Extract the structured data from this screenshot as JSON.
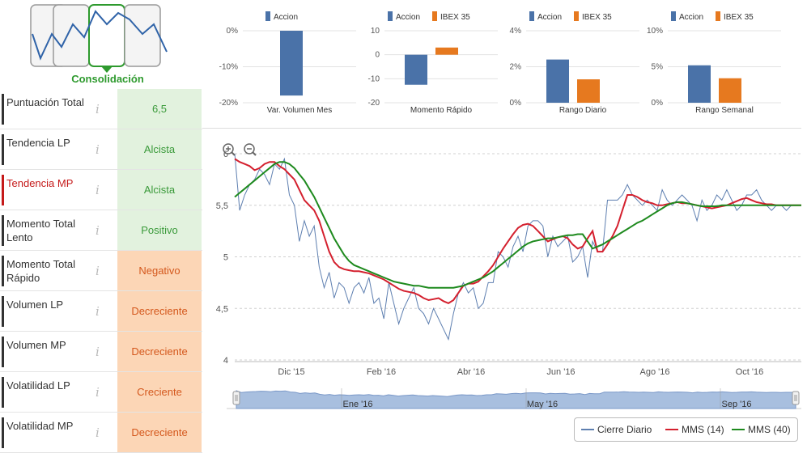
{
  "phase": {
    "label": "Consolidación",
    "phases": [
      "phase-1",
      "phase-2",
      "consolidacion",
      "phase-4"
    ],
    "active_index": 2,
    "colors": {
      "active": "#2e9a2e",
      "inactive": "#999999",
      "line": "#2f63a8"
    }
  },
  "indicators": [
    {
      "name": "Puntuación Total",
      "value": "6,5",
      "tone": "pos",
      "active": false
    },
    {
      "name": "Tendencia LP",
      "value": "Alcista",
      "tone": "pos",
      "active": false
    },
    {
      "name": "Tendencia MP",
      "value": "Alcista",
      "tone": "pos",
      "active": true
    },
    {
      "name": "Momento Total Lento",
      "value": "Positivo",
      "tone": "pos",
      "active": false
    },
    {
      "name": "Momento Total Rápido",
      "value": "Negativo",
      "tone": "neg",
      "active": false
    },
    {
      "name": "Volumen LP",
      "value": "Decreciente",
      "tone": "neg",
      "active": false
    },
    {
      "name": "Volumen MP",
      "value": "Decreciente",
      "tone": "neg",
      "active": false
    },
    {
      "name": "Volatilidad LP",
      "value": "Creciente",
      "tone": "neg",
      "active": false
    },
    {
      "name": "Volatilidad MP",
      "value": "Decreciente",
      "tone": "neg",
      "active": false
    }
  ],
  "info_glyph": "i",
  "colors": {
    "accion": "#4a72a8",
    "ibex": "#e6791f",
    "mms14": "#d4202e",
    "mms40": "#1e8a1e",
    "cierre": "#5e7fb0"
  },
  "chart_data": [
    {
      "type": "bar",
      "xlabel": "Var. Volumen Mes",
      "legend": [
        "Accion"
      ],
      "ticks": [
        "0%",
        "-10%",
        "-20%"
      ],
      "ylim": [
        -20,
        0
      ],
      "series": [
        {
          "name": "Accion",
          "values": [
            -18
          ]
        }
      ]
    },
    {
      "type": "bar",
      "xlabel": "Momento Rápido",
      "legend": [
        "Accion",
        "IBEX 35"
      ],
      "ticks": [
        "10",
        "0",
        "-10",
        "-20"
      ],
      "ylim": [
        -20,
        10
      ],
      "series": [
        {
          "name": "Accion",
          "values": [
            -12.5
          ]
        },
        {
          "name": "IBEX 35",
          "values": [
            3
          ]
        }
      ]
    },
    {
      "type": "bar",
      "xlabel": "Rango Diario",
      "legend": [
        "Accion",
        "IBEX 35"
      ],
      "ticks": [
        "4%",
        "2%",
        "0%"
      ],
      "ylim": [
        0,
        4
      ],
      "series": [
        {
          "name": "Accion",
          "values": [
            2.4
          ]
        },
        {
          "name": "IBEX 35",
          "values": [
            1.3
          ]
        }
      ]
    },
    {
      "type": "bar",
      "xlabel": "Rango Semanal",
      "legend": [
        "Accion",
        "IBEX 35"
      ],
      "ticks": [
        "10%",
        "5%",
        "0%"
      ],
      "ylim": [
        0,
        10
      ],
      "series": [
        {
          "name": "Accion",
          "values": [
            5.2
          ]
        },
        {
          "name": "IBEX 35",
          "values": [
            3.4
          ]
        }
      ]
    },
    {
      "type": "line",
      "yticks": [
        "6",
        "5,5",
        "5",
        "4,5",
        "4"
      ],
      "ylim": [
        4,
        6
      ],
      "xticks": [
        "Dic '15",
        "Feb '16",
        "Abr '16",
        "Jun '16",
        "Ago '16",
        "Oct '16"
      ],
      "navigator_ticks": [
        "Ene '16",
        "May '16",
        "Sep '16"
      ],
      "x": [
        0,
        3,
        6,
        9,
        12,
        15,
        18,
        21,
        24,
        27,
        30,
        33,
        36,
        39,
        42,
        45,
        48,
        51,
        54,
        57,
        60,
        63,
        66,
        69,
        72,
        75,
        78,
        81,
        84,
        87,
        90,
        93,
        96,
        99,
        102,
        105,
        108,
        111,
        114,
        117,
        120,
        123,
        126,
        129,
        132,
        135,
        138,
        141,
        144,
        147,
        150,
        153,
        156,
        159,
        162,
        165,
        168,
        171,
        174,
        177,
        180,
        183,
        186,
        189,
        192,
        195,
        198,
        201,
        204,
        207,
        210,
        213,
        216,
        219,
        222,
        225,
        228,
        231,
        234,
        237,
        240,
        243,
        246,
        249,
        252,
        255,
        258,
        261,
        264,
        267,
        270,
        273,
        276,
        279,
        282,
        285,
        288,
        291,
        294,
        297,
        300,
        303,
        306,
        309,
        312,
        315,
        318,
        321,
        324,
        327,
        330,
        333,
        336,
        339,
        342
      ],
      "series": [
        {
          "name": "Cierre Diario",
          "values": [
            6.0,
            5.45,
            5.6,
            5.7,
            5.75,
            5.85,
            5.8,
            5.7,
            5.9,
            5.85,
            5.95,
            5.6,
            5.5,
            5.15,
            5.35,
            5.2,
            5.3,
            4.9,
            4.7,
            4.85,
            4.6,
            4.75,
            4.7,
            4.55,
            4.7,
            4.75,
            4.65,
            4.8,
            4.55,
            4.6,
            4.4,
            4.75,
            4.55,
            4.35,
            4.5,
            4.6,
            4.7,
            4.5,
            4.45,
            4.35,
            4.5,
            4.4,
            4.3,
            4.2,
            4.45,
            4.65,
            4.75,
            4.65,
            4.7,
            4.5,
            4.55,
            4.75,
            4.75,
            5.05,
            5.0,
            4.9,
            5.1,
            5.2,
            5.05,
            5.3,
            5.35,
            5.35,
            5.3,
            5.0,
            5.2,
            5.1,
            5.15,
            5.2,
            4.95,
            5.0,
            5.1,
            4.8,
            5.15,
            5.05,
            5.05,
            5.55,
            5.55,
            5.55,
            5.6,
            5.7,
            5.6,
            5.55,
            5.5,
            5.55,
            5.5,
            5.45,
            5.65,
            5.55,
            5.5,
            5.55,
            5.6,
            5.55,
            5.5,
            5.35,
            5.55,
            5.45,
            5.5,
            5.6,
            5.55,
            5.65,
            5.55,
            5.45,
            5.5,
            5.6,
            5.6,
            5.65,
            5.55,
            5.5,
            5.45,
            5.5,
            5.5,
            5.45,
            5.5,
            5.5,
            5.5
          ]
        },
        {
          "name": "MMS (14)",
          "values": [
            5.95,
            5.92,
            5.9,
            5.88,
            5.84,
            5.86,
            5.9,
            5.92,
            5.92,
            5.88,
            5.85,
            5.8,
            5.75,
            5.65,
            5.55,
            5.5,
            5.45,
            5.35,
            5.2,
            5.05,
            4.95,
            4.9,
            4.88,
            4.87,
            4.86,
            4.86,
            4.85,
            4.84,
            4.82,
            4.8,
            4.78,
            4.75,
            4.72,
            4.69,
            4.67,
            4.66,
            4.65,
            4.63,
            4.6,
            4.58,
            4.59,
            4.6,
            4.57,
            4.55,
            4.58,
            4.65,
            4.72,
            4.74,
            4.74,
            4.76,
            4.81,
            4.86,
            4.92,
            5.0,
            5.08,
            5.15,
            5.22,
            5.28,
            5.31,
            5.32,
            5.3,
            5.25,
            5.2,
            5.15,
            5.17,
            5.19,
            5.2,
            5.18,
            5.12,
            5.08,
            5.1,
            5.18,
            5.25,
            5.05,
            5.05,
            5.12,
            5.2,
            5.3,
            5.45,
            5.6,
            5.6,
            5.58,
            5.55,
            5.53,
            5.52,
            5.5,
            5.5,
            5.51,
            5.52,
            5.53,
            5.52,
            5.52,
            5.51,
            5.5,
            5.49,
            5.48,
            5.47,
            5.48,
            5.49,
            5.5,
            5.52,
            5.54,
            5.56,
            5.57,
            5.55,
            5.53,
            5.52,
            5.51,
            5.51,
            5.5,
            5.5,
            5.5,
            5.5,
            5.5,
            5.5
          ]
        },
        {
          "name": "MMS (40)",
          "values": [
            5.58,
            5.62,
            5.66,
            5.7,
            5.74,
            5.78,
            5.82,
            5.86,
            5.9,
            5.92,
            5.92,
            5.9,
            5.86,
            5.8,
            5.74,
            5.66,
            5.58,
            5.48,
            5.38,
            5.28,
            5.18,
            5.1,
            5.02,
            4.96,
            4.92,
            4.9,
            4.88,
            4.86,
            4.84,
            4.82,
            4.8,
            4.78,
            4.76,
            4.75,
            4.74,
            4.73,
            4.72,
            4.72,
            4.71,
            4.7,
            4.7,
            4.7,
            4.7,
            4.7,
            4.7,
            4.71,
            4.72,
            4.74,
            4.76,
            4.78,
            4.8,
            4.83,
            4.86,
            4.9,
            4.94,
            4.98,
            5.02,
            5.06,
            5.1,
            5.13,
            5.15,
            5.16,
            5.17,
            5.18,
            5.18,
            5.19,
            5.2,
            5.21,
            5.21,
            5.22,
            5.22,
            5.15,
            5.08,
            5.1,
            5.12,
            5.15,
            5.18,
            5.21,
            5.24,
            5.27,
            5.3,
            5.33,
            5.35,
            5.38,
            5.41,
            5.44,
            5.47,
            5.5,
            5.52,
            5.53,
            5.53,
            5.52,
            5.51,
            5.5,
            5.49,
            5.49,
            5.49,
            5.49,
            5.5,
            5.5,
            5.5,
            5.5,
            5.5,
            5.5,
            5.5,
            5.5,
            5.5,
            5.5,
            5.5,
            5.5,
            5.5,
            5.5,
            5.5,
            5.5,
            5.5
          ]
        }
      ],
      "legend": [
        "Cierre Diario",
        "MMS (14)",
        "MMS (40)"
      ],
      "grid": true,
      "legend_position": "bottom-right",
      "zoom_icons": [
        "zoom-in-icon",
        "zoom-out-icon"
      ]
    }
  ]
}
